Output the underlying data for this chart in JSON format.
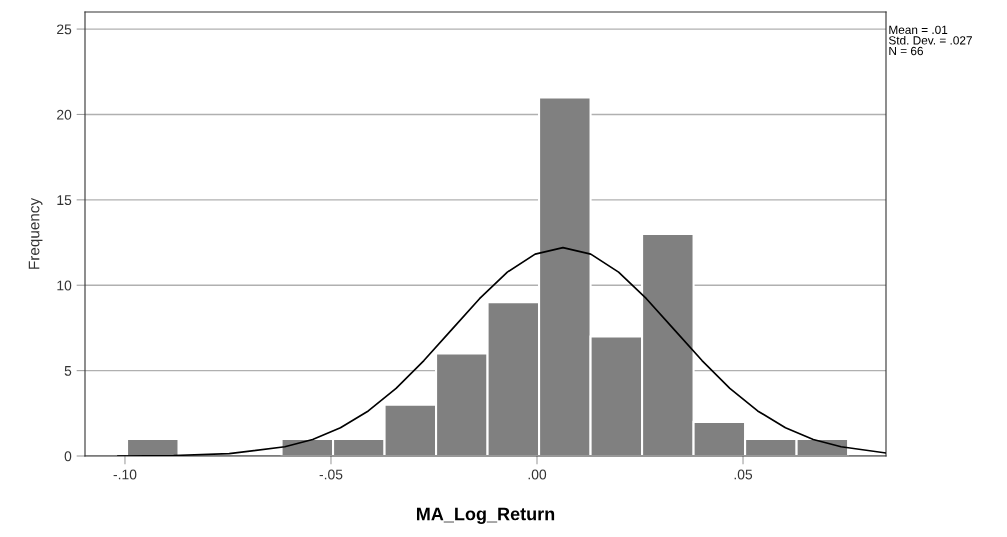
{
  "chart_data": {
    "type": "histogram",
    "xlabel": "MA_Log_Return",
    "ylabel": "Frequency",
    "annotations": [
      "Mean = .01\nStd. Dev. = .027\nN = 66"
    ],
    "xlim": [
      -0.1097,
      0.0847
    ],
    "ylim": [
      0,
      26
    ],
    "xticks": [
      {
        "value": -0.1,
        "label": "-.10"
      },
      {
        "value": -0.05,
        "label": "-.05"
      },
      {
        "value": 0,
        "label": ".00"
      },
      {
        "value": 0.05,
        "label": ".05"
      }
    ],
    "yticks": [
      0,
      5,
      10,
      15,
      20,
      25
    ],
    "grid": "y",
    "legend": false,
    "series": [
      {
        "type": "histogram",
        "color": "#808080",
        "bins": [
          -0.0995,
          -0.087,
          -0.0745,
          -0.062,
          -0.0495,
          -0.037,
          -0.0245,
          -0.012,
          0.0005,
          0.013,
          0.0255,
          0.038,
          0.0505,
          0.063,
          0.0755
        ],
        "values": [
          1,
          0,
          0,
          1,
          1,
          3,
          6,
          9,
          21,
          7,
          13,
          2,
          1,
          1
        ]
      },
      {
        "type": "line",
        "color": "#000000",
        "x": [
          -0.1017,
          -0.0882,
          -0.0747,
          -0.0612,
          -0.05445,
          -0.0477,
          -0.04095,
          -0.0342,
          -0.02745,
          -0.0207,
          -0.01395,
          -0.0072,
          -0.00045,
          0.0063,
          0.01305,
          0.0198,
          0.02655,
          0.0333,
          0.04005,
          0.0468,
          0.05355,
          0.0603,
          0.06705,
          0.0738,
          0.0846
        ],
        "values": [
          0.0,
          0.03,
          0.14,
          0.54,
          0.97,
          1.65,
          2.64,
          3.96,
          5.59,
          7.4,
          9.21,
          10.77,
          11.82,
          12.2,
          11.82,
          10.77,
          9.21,
          7.4,
          5.59,
          3.96,
          2.64,
          1.65,
          0.97,
          0.54,
          0.18
        ]
      }
    ]
  }
}
